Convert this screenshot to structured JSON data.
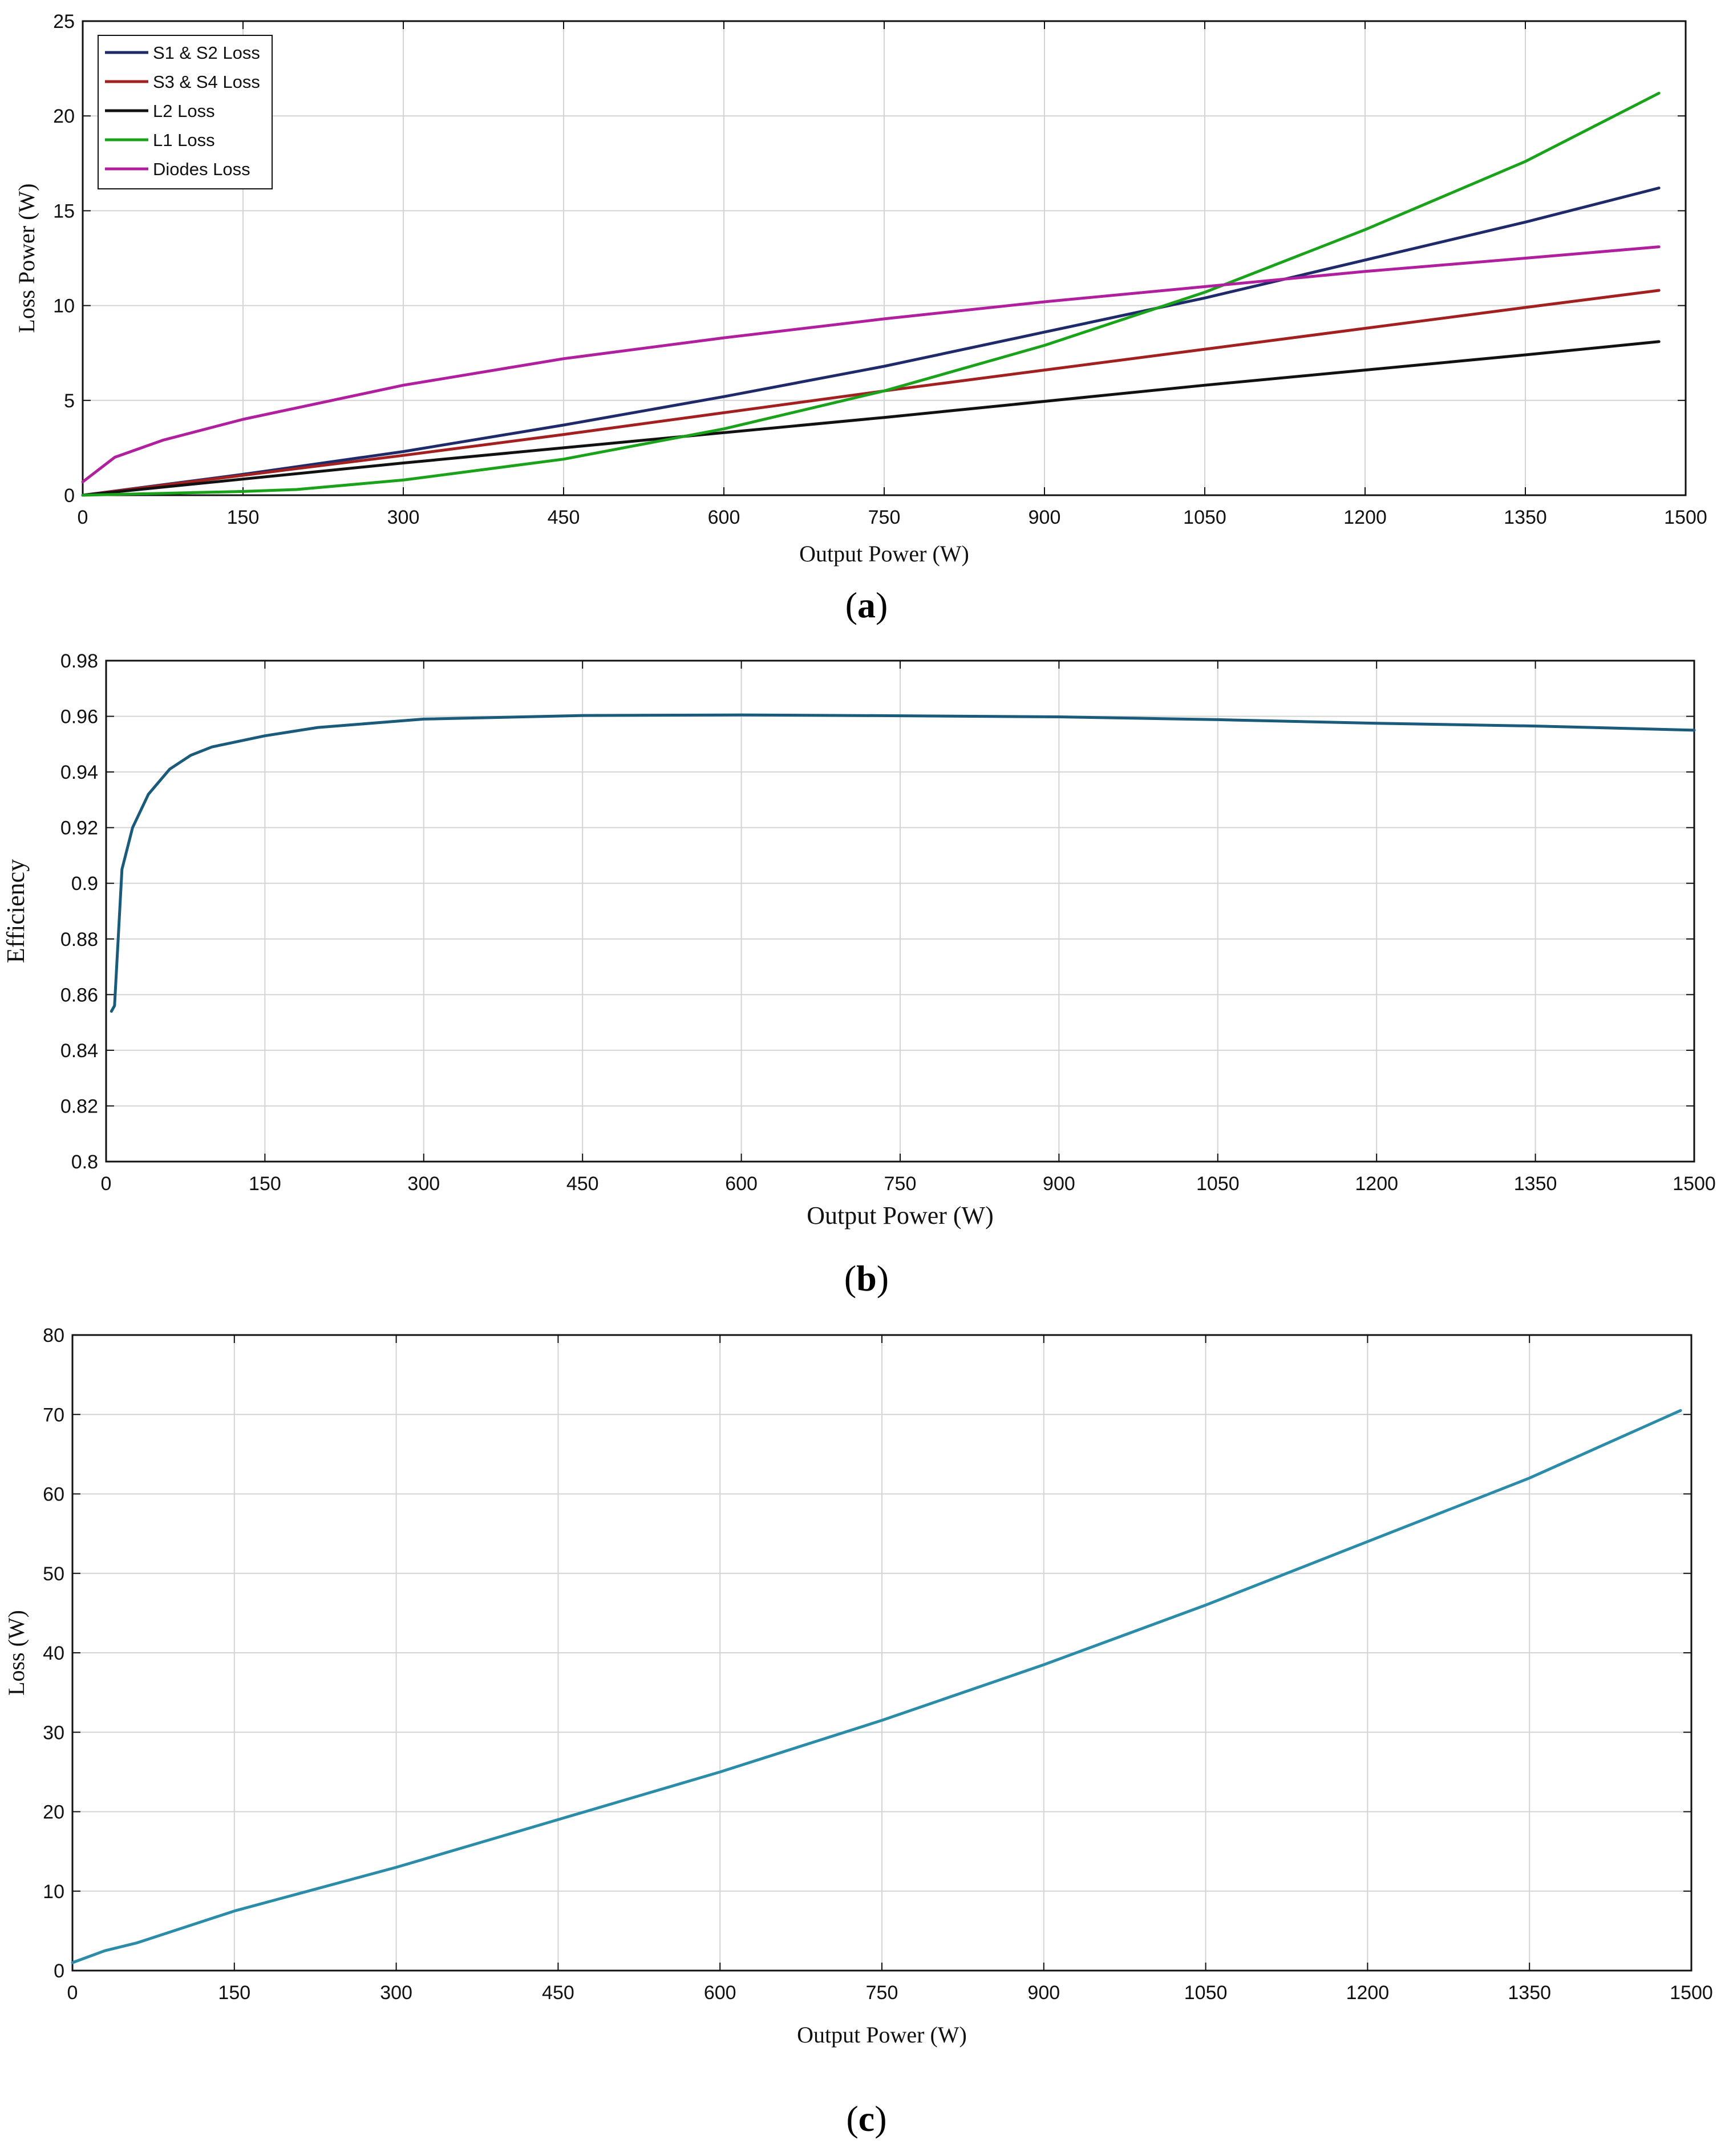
{
  "chart_data": [
    {
      "type": "line",
      "panel_label": "a",
      "xlabel": "Output Power (W)",
      "ylabel": "Loss Power (W)",
      "xlim": [
        0,
        1500
      ],
      "ylim": [
        0,
        25
      ],
      "xticks": [
        "0",
        "150",
        "300",
        "450",
        "600",
        "750",
        "900",
        "1050",
        "1200",
        "1350",
        "1500"
      ],
      "yticks": [
        "0",
        "5",
        "10",
        "15",
        "20",
        "25"
      ],
      "grid": true,
      "legend_position": "top-left",
      "series": [
        {
          "name": "S1 & S2 Loss",
          "color": "#1f2a6b",
          "x": [
            0,
            150,
            300,
            450,
            600,
            750,
            900,
            1050,
            1200,
            1350,
            1475
          ],
          "y": [
            0,
            1.1,
            2.3,
            3.7,
            5.2,
            6.8,
            8.6,
            10.4,
            12.4,
            14.4,
            16.2
          ]
        },
        {
          "name": "S3 & S4 Loss",
          "color": "#a32020",
          "x": [
            0,
            150,
            300,
            450,
            600,
            750,
            900,
            1050,
            1200,
            1350,
            1475
          ],
          "y": [
            0,
            1.05,
            2.1,
            3.2,
            4.35,
            5.5,
            6.6,
            7.7,
            8.8,
            9.9,
            10.8
          ]
        },
        {
          "name": "L2 Loss",
          "color": "#111111",
          "x": [
            0,
            150,
            300,
            450,
            600,
            750,
            900,
            1050,
            1200,
            1350,
            1475
          ],
          "y": [
            0,
            0.85,
            1.7,
            2.5,
            3.3,
            4.1,
            4.95,
            5.8,
            6.6,
            7.4,
            8.1
          ]
        },
        {
          "name": "L1 Loss",
          "color": "#1aa31a",
          "x": [
            0,
            150,
            200,
            300,
            450,
            600,
            750,
            900,
            1050,
            1200,
            1350,
            1475
          ],
          "y": [
            0,
            0.2,
            0.3,
            0.8,
            1.9,
            3.5,
            5.5,
            7.9,
            10.7,
            14.0,
            17.6,
            21.2
          ]
        },
        {
          "name": "Diodes Loss",
          "color": "#b0209e",
          "x": [
            0,
            30,
            75,
            150,
            300,
            450,
            600,
            750,
            900,
            1050,
            1200,
            1350,
            1475
          ],
          "y": [
            0.7,
            2.0,
            2.9,
            4.0,
            5.8,
            7.2,
            8.3,
            9.3,
            10.2,
            11.0,
            11.8,
            12.5,
            13.1
          ]
        }
      ]
    },
    {
      "type": "line",
      "panel_label": "b",
      "xlabel": "Output Power (W)",
      "ylabel": "Efficiency",
      "xlim": [
        0,
        1500
      ],
      "ylim": [
        0.8,
        0.98
      ],
      "xticks": [
        "0",
        "150",
        "300",
        "450",
        "600",
        "750",
        "900",
        "1050",
        "1200",
        "1350",
        "1500"
      ],
      "yticks": [
        "0.8",
        "0.82",
        "0.84",
        "0.86",
        "0.88",
        "0.9",
        "0.92",
        "0.94",
        "0.96",
        "0.98"
      ],
      "grid": true,
      "series": [
        {
          "name": "",
          "color": "#1a5a7a",
          "x": [
            5,
            8,
            15,
            25,
            40,
            60,
            80,
            100,
            150,
            200,
            300,
            450,
            600,
            750,
            900,
            1050,
            1200,
            1350,
            1500
          ],
          "y": [
            0.854,
            0.856,
            0.905,
            0.92,
            0.932,
            0.941,
            0.946,
            0.949,
            0.953,
            0.956,
            0.959,
            0.9603,
            0.9605,
            0.9602,
            0.9598,
            0.9588,
            0.9575,
            0.9565,
            0.955
          ]
        }
      ]
    },
    {
      "type": "line",
      "panel_label": "c",
      "xlabel": "Output Power (W)",
      "ylabel": "Loss  (W)",
      "xlim": [
        0,
        1500
      ],
      "ylim": [
        0,
        80
      ],
      "xticks": [
        "0",
        "150",
        "300",
        "450",
        "600",
        "750",
        "900",
        "1050",
        "1200",
        "1350",
        "1500"
      ],
      "yticks": [
        "0",
        "10",
        "20",
        "30",
        "40",
        "50",
        "60",
        "70",
        "80"
      ],
      "grid": true,
      "series": [
        {
          "name": "",
          "color": "#2a8ca8",
          "x": [
            0,
            30,
            60,
            150,
            300,
            450,
            600,
            750,
            900,
            1050,
            1200,
            1350,
            1490
          ],
          "y": [
            1,
            2.5,
            3.5,
            7.5,
            13,
            19,
            25,
            31.5,
            38.5,
            46,
            54,
            62,
            70.5
          ]
        }
      ]
    }
  ]
}
